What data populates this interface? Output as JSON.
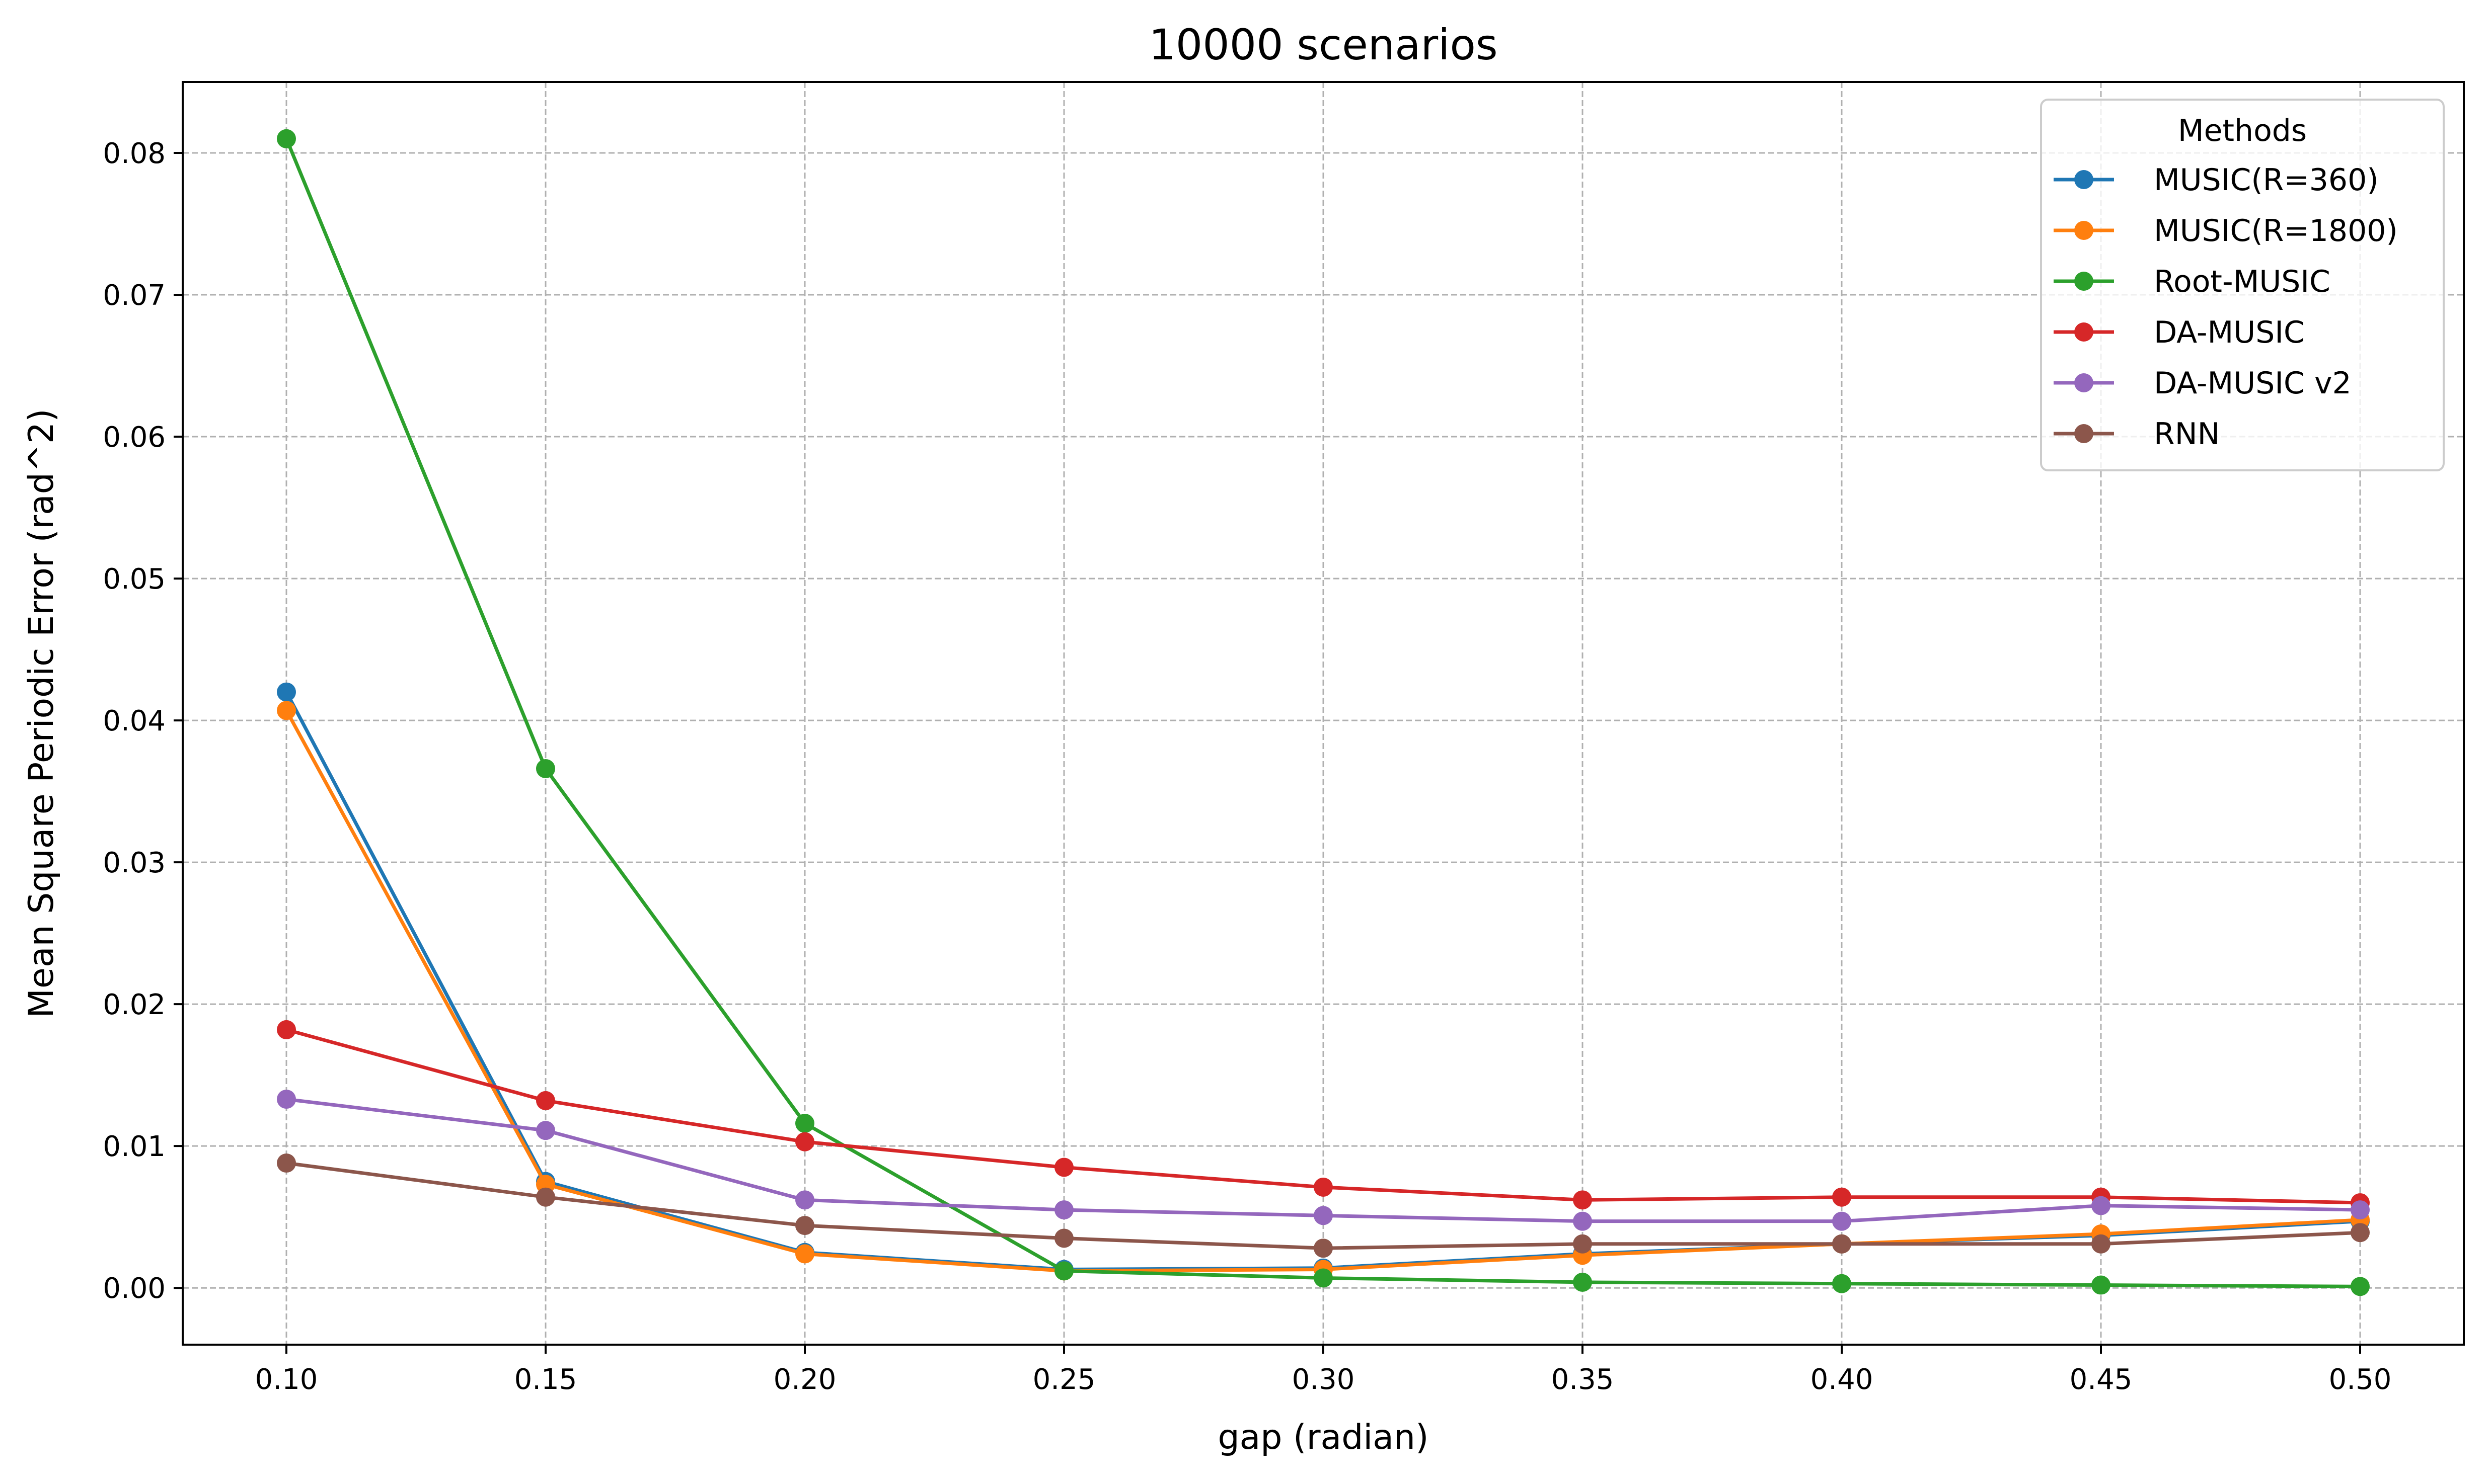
{
  "chart_data": {
    "type": "line",
    "title": "10000 scenarios",
    "xlabel": "gap (radian)",
    "ylabel": "Mean Square Periodic Error (rad^2)",
    "x": [
      0.1,
      0.15,
      0.2,
      0.25,
      0.3,
      0.35,
      0.4,
      0.45,
      0.5
    ],
    "x_tick_labels": [
      "0.10",
      "0.15",
      "0.20",
      "0.25",
      "0.30",
      "0.35",
      "0.40",
      "0.45",
      "0.50"
    ],
    "y_tick_values": [
      0.0,
      0.01,
      0.02,
      0.03,
      0.04,
      0.05,
      0.06,
      0.07,
      0.08
    ],
    "y_tick_labels": [
      "0.00",
      "0.01",
      "0.02",
      "0.03",
      "0.04",
      "0.05",
      "0.06",
      "0.07",
      "0.08"
    ],
    "xlim": [
      0.08,
      0.52
    ],
    "ylim": [
      -0.004,
      0.085
    ],
    "grid": true,
    "legend_title": "Methods",
    "legend_position": "top-right",
    "series": [
      {
        "name": "MUSIC(R=360)",
        "color": "#1f77b4",
        "values": [
          0.042,
          0.0075,
          0.0025,
          0.0013,
          0.0014,
          0.0024,
          0.0031,
          0.0037,
          0.0047
        ]
      },
      {
        "name": "MUSIC(R=1800)",
        "color": "#ff7f0e",
        "values": [
          0.0407,
          0.0073,
          0.0024,
          0.0012,
          0.0013,
          0.0023,
          0.0031,
          0.0038,
          0.0048
        ]
      },
      {
        "name": "Root-MUSIC",
        "color": "#2ca02c",
        "values": [
          0.081,
          0.0366,
          0.0116,
          0.0012,
          0.0007,
          0.0004,
          0.0003,
          0.0002,
          0.0001
        ]
      },
      {
        "name": "DA-MUSIC",
        "color": "#d62728",
        "values": [
          0.0182,
          0.0132,
          0.0103,
          0.0085,
          0.0071,
          0.0062,
          0.0064,
          0.0064,
          0.006
        ]
      },
      {
        "name": "DA-MUSIC v2",
        "color": "#9467bd",
        "values": [
          0.0133,
          0.0111,
          0.0062,
          0.0055,
          0.0051,
          0.0047,
          0.0047,
          0.0058,
          0.0055
        ]
      },
      {
        "name": "RNN",
        "color": "#8c564b",
        "values": [
          0.0088,
          0.0064,
          0.0044,
          0.0035,
          0.0028,
          0.0031,
          0.0031,
          0.0031,
          0.0039
        ]
      }
    ]
  }
}
